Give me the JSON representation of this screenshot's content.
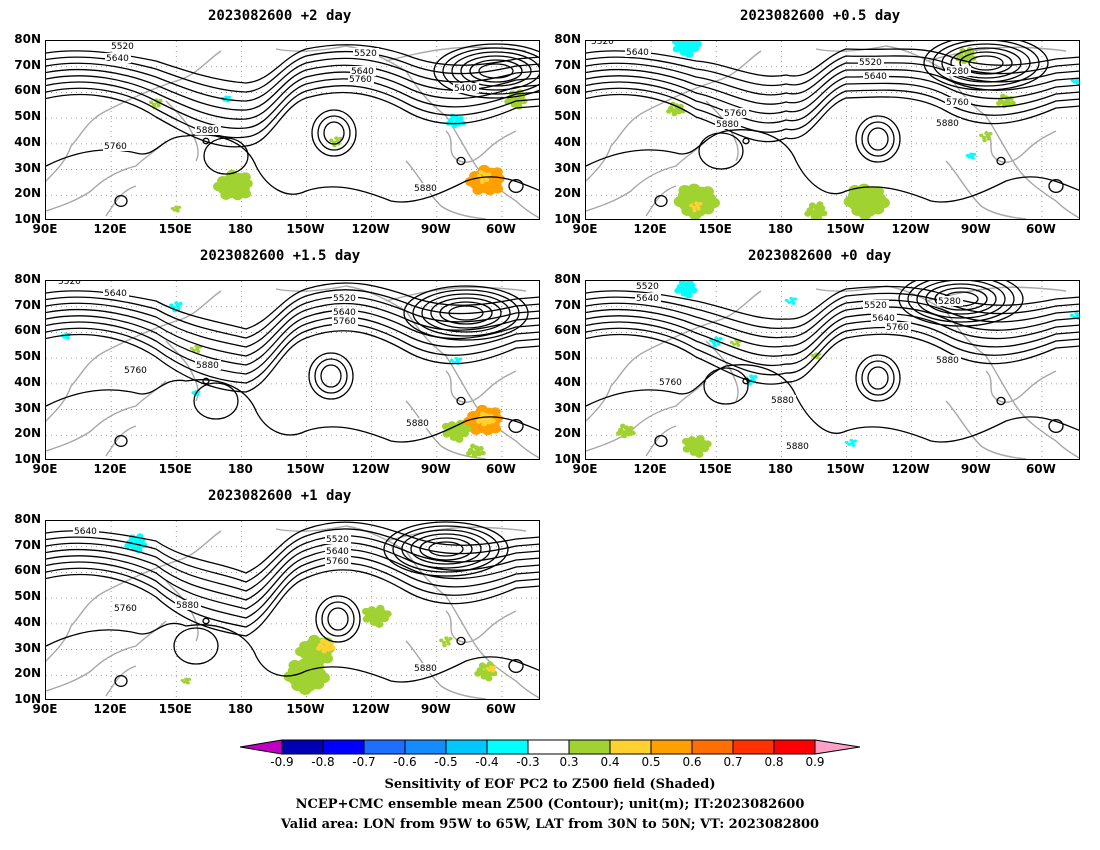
{
  "panels": [
    {
      "title": "2023082600 +2 day",
      "x_labels": [
        "90E",
        "120E",
        "150E",
        "180",
        "150W",
        "120W",
        "90W",
        "60W"
      ],
      "y_labels": [
        "80N",
        "70N",
        "60N",
        "50N",
        "40N",
        "30N",
        "20N",
        "10N"
      ],
      "contour_labels": [
        "5520",
        "5640",
        "5520",
        "5640",
        "5760",
        "5400",
        "5880",
        "5760",
        "5880"
      ]
    },
    {
      "title": "2023082600 +0.5 day",
      "x_labels": [
        "90E",
        "120E",
        "150E",
        "180",
        "150W",
        "120W",
        "90W",
        "60W"
      ],
      "y_labels": [
        "80N",
        "70N",
        "60N",
        "50N",
        "40N",
        "30N",
        "20N",
        "10N"
      ],
      "contour_labels": [
        "5520",
        "5640",
        "5520",
        "5640",
        "5280",
        "5760",
        "5880",
        "5760",
        "5880"
      ]
    },
    {
      "title": "2023082600 +1.5 day",
      "x_labels": [
        "90E",
        "120E",
        "150E",
        "180",
        "150W",
        "120W",
        "90W",
        "60W"
      ],
      "y_labels": [
        "80N",
        "70N",
        "60N",
        "50N",
        "40N",
        "30N",
        "20N",
        "10N"
      ],
      "contour_labels": [
        "5520",
        "5640",
        "5520",
        "5640",
        "5760",
        "5760",
        "5880",
        "5880"
      ]
    },
    {
      "title": "2023082600 +0 day",
      "x_labels": [
        "90E",
        "120E",
        "150E",
        "180",
        "150W",
        "120W",
        "90W",
        "60W"
      ],
      "y_labels": [
        "80N",
        "70N",
        "60N",
        "50N",
        "40N",
        "30N",
        "20N",
        "10N"
      ],
      "contour_labels": [
        "5520",
        "5640",
        "5520",
        "5640",
        "5760",
        "5280",
        "5760",
        "5880",
        "5880",
        "5880"
      ]
    },
    {
      "title": "2023082600 +1 day",
      "x_labels": [
        "90E",
        "120E",
        "150E",
        "180",
        "150W",
        "120W",
        "90W",
        "60W"
      ],
      "y_labels": [
        "80N",
        "70N",
        "60N",
        "50N",
        "40N",
        "30N",
        "20N",
        "10N"
      ],
      "contour_labels": [
        "5640",
        "5520",
        "5640",
        "5760",
        "5760",
        "5880",
        "5880"
      ]
    }
  ],
  "colorbar": {
    "labels": [
      "-0.9",
      "-0.8",
      "-0.7",
      "-0.6",
      "-0.5",
      "-0.4",
      "-0.3",
      "0.3",
      "0.4",
      "0.5",
      "0.6",
      "0.7",
      "0.8",
      "0.9"
    ],
    "colors": [
      "#c000c0",
      "#0000b4",
      "#0000ff",
      "#1e6eff",
      "#148cff",
      "#00c8ff",
      "#00ffff",
      "#ffffff",
      "#a0d232",
      "#ffd232",
      "#ffa000",
      "#ff6e00",
      "#ff3200",
      "#ff0000",
      "#ffa0c8"
    ]
  },
  "captions": [
    "Sensitivity of EOF PC2 to Z500 field (Shaded)",
    "NCEP+CMC ensemble mean Z500 (Contour); unit(m); IT:2023082600",
    "Valid area: LON from 95W to 65W, LAT from 30N to 50N; VT: 2023082800"
  ]
}
